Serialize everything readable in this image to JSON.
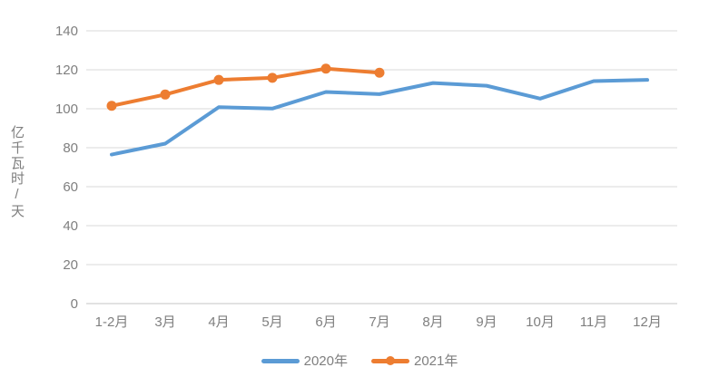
{
  "chart_data": {
    "type": "line",
    "title": "",
    "xlabel": "",
    "ylabel": "亿千瓦时/天",
    "ylim": [
      0,
      140
    ],
    "ytick_step": 20,
    "grid": true,
    "legend_position": "bottom",
    "categories": [
      "1-2月",
      "3月",
      "4月",
      "5月",
      "6月",
      "7月",
      "8月",
      "9月",
      "10月",
      "11月",
      "12月"
    ],
    "series": [
      {
        "name": "2020年",
        "color": "#5B9BD5",
        "marker": false,
        "values": [
          76.5,
          82.1,
          100.8,
          100.1,
          108.6,
          107.5,
          113.2,
          111.8,
          105.2,
          114.2,
          114.8
        ]
      },
      {
        "name": "2021年",
        "color": "#ED7D31",
        "marker": true,
        "values": [
          101.5,
          107.3,
          114.8,
          115.9,
          120.6,
          118.5
        ]
      }
    ]
  },
  "colors": {
    "gridline": "#D9D9D9",
    "axis_line": "#C6C6C6",
    "tick_text": "#7F7F7F"
  }
}
